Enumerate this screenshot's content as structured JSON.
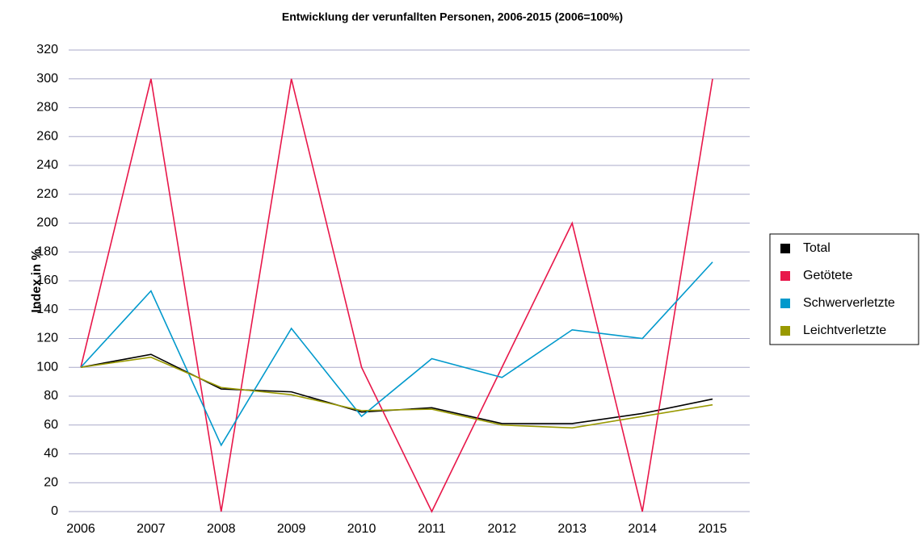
{
  "chart_data": {
    "type": "line",
    "title": "Entwicklung der verunfallten Personen, 2006-2015 (2006=100%)",
    "y_label": "Index in %",
    "categories": [
      "2006",
      "2007",
      "2008",
      "2009",
      "2010",
      "2011",
      "2012",
      "2013",
      "2014",
      "2015"
    ],
    "series": [
      {
        "name": "Total",
        "color": "#000000",
        "values": [
          100,
          109,
          85,
          83,
          69,
          72,
          61,
          61,
          68,
          78
        ]
      },
      {
        "name": "Getötete",
        "color": "#e8174a",
        "values": [
          100,
          300,
          0,
          300,
          100,
          0,
          100,
          200,
          0,
          300
        ]
      },
      {
        "name": "Schwerverletzte",
        "color": "#0099cc",
        "values": [
          100,
          153,
          46,
          127,
          66,
          106,
          93,
          126,
          120,
          173
        ]
      },
      {
        "name": "Leichtverletzte",
        "color": "#999900",
        "values": [
          100,
          107,
          86,
          81,
          70,
          71,
          60,
          58,
          66,
          74
        ]
      }
    ],
    "ylim": [
      0,
      320
    ],
    "yticks": [
      0,
      20,
      40,
      60,
      80,
      100,
      120,
      140,
      160,
      180,
      200,
      220,
      240,
      260,
      280,
      300,
      320
    ],
    "grid": true,
    "legend": "right"
  }
}
